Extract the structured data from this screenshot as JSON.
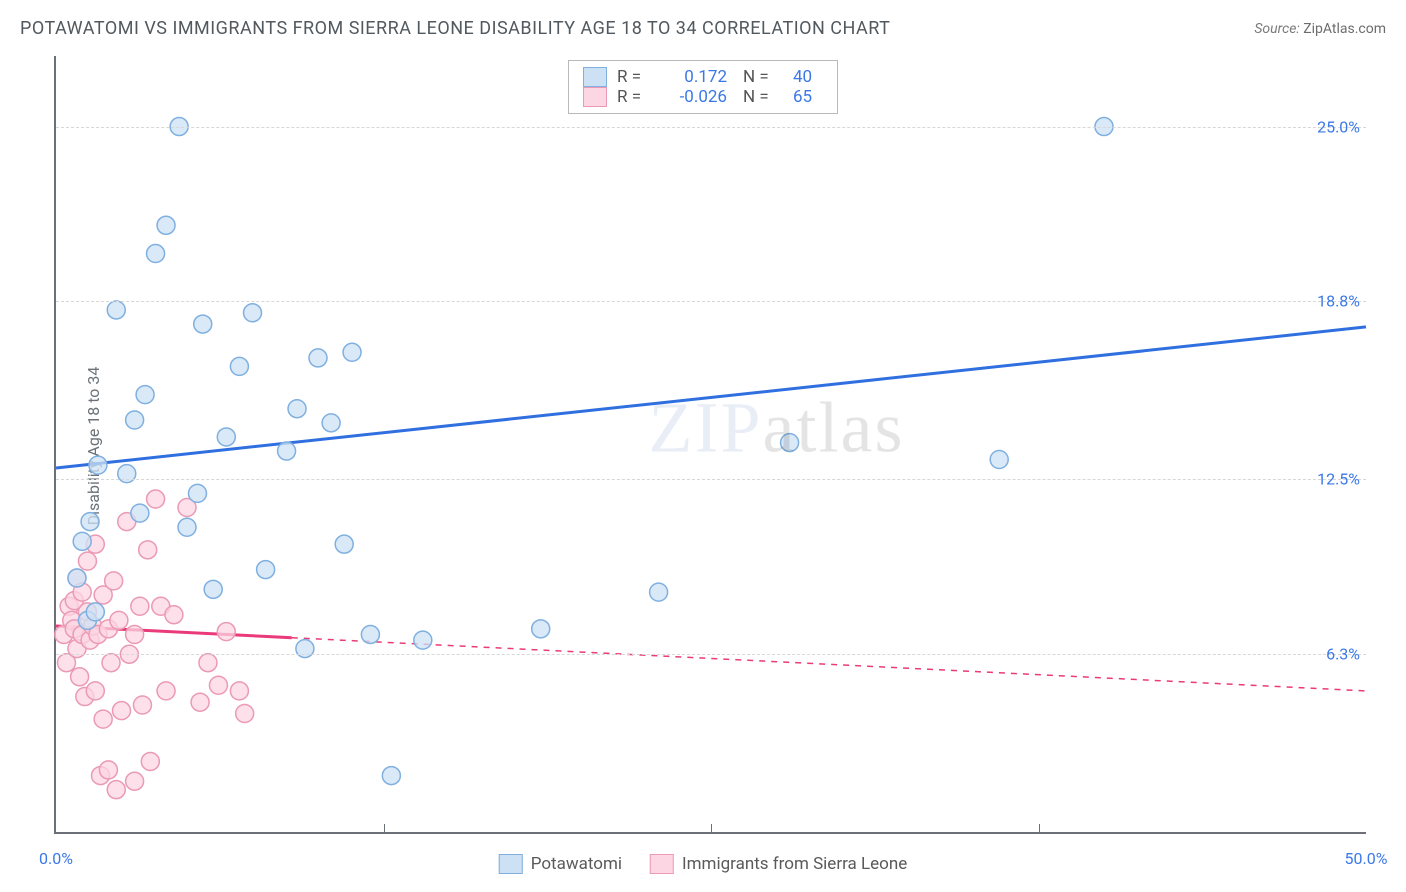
{
  "title": "POTAWATOMI VS IMMIGRANTS FROM SIERRA LEONE DISABILITY AGE 18 TO 34 CORRELATION CHART",
  "source_prefix": "Source: ",
  "source_site": "ZipAtlas.com",
  "ylabel": "Disability Age 18 to 34",
  "watermark_a": "ZIP",
  "watermark_b": "atlas",
  "chart": {
    "type": "scatter",
    "xlim": [
      0,
      50
    ],
    "ylim": [
      0,
      27.5
    ],
    "x_ticks_pct": [
      0,
      12.5,
      25,
      37.5,
      50
    ],
    "x_axis_labels": {
      "min": "0.0%",
      "max": "50.0%"
    },
    "y_gridlines": [
      {
        "val": 6.3,
        "label": "6.3%"
      },
      {
        "val": 12.5,
        "label": "12.5%"
      },
      {
        "val": 18.8,
        "label": "18.8%"
      },
      {
        "val": 25.0,
        "label": "25.0%"
      }
    ],
    "background_color": "#ffffff",
    "grid_color": "#d7d7d7",
    "axis_color": "#6b7177",
    "label_color_blue": "#3b78e7",
    "marker_radius": 9,
    "marker_stroke_width": 1.5,
    "trend_line_width": 3,
    "series": [
      {
        "key": "blue",
        "name": "Potawatomi",
        "R": "0.172",
        "N": "40",
        "fill": "#cde1f4",
        "stroke": "#7fb0e0",
        "trend_color": "#2f6fe0",
        "trend": {
          "x1": 0,
          "y1": 12.9,
          "x2": 50,
          "y2": 17.9,
          "solid_until_x": 50
        },
        "points": [
          [
            0.8,
            9.0
          ],
          [
            1.0,
            10.3
          ],
          [
            1.2,
            7.5
          ],
          [
            1.3,
            11.0
          ],
          [
            1.5,
            7.8
          ],
          [
            1.6,
            13.0
          ],
          [
            2.3,
            18.5
          ],
          [
            2.7,
            12.7
          ],
          [
            3.0,
            14.6
          ],
          [
            3.2,
            11.3
          ],
          [
            3.4,
            15.5
          ],
          [
            3.8,
            20.5
          ],
          [
            4.2,
            21.5
          ],
          [
            4.7,
            25.0
          ],
          [
            5.0,
            10.8
          ],
          [
            5.4,
            12.0
          ],
          [
            5.6,
            18.0
          ],
          [
            6.0,
            8.6
          ],
          [
            6.5,
            14.0
          ],
          [
            7.0,
            16.5
          ],
          [
            7.5,
            18.4
          ],
          [
            8.0,
            9.3
          ],
          [
            8.8,
            13.5
          ],
          [
            9.2,
            15.0
          ],
          [
            9.5,
            6.5
          ],
          [
            10.0,
            16.8
          ],
          [
            10.5,
            14.5
          ],
          [
            11.0,
            10.2
          ],
          [
            11.3,
            17.0
          ],
          [
            12.0,
            7.0
          ],
          [
            12.8,
            2.0
          ],
          [
            14.0,
            6.8
          ],
          [
            18.5,
            7.2
          ],
          [
            23.0,
            8.5
          ],
          [
            28.0,
            13.8
          ],
          [
            36.0,
            13.2
          ],
          [
            40.0,
            25.0
          ]
        ]
      },
      {
        "key": "pink",
        "name": "Immigrants from Sierra Leone",
        "R": "-0.026",
        "N": "65",
        "fill": "#fcd6e2",
        "stroke": "#ea9ab5",
        "trend_color": "#ea3a7a",
        "trend": {
          "x1": 0,
          "y1": 7.3,
          "x2": 50,
          "y2": 5.0,
          "solid_until_x": 9
        },
        "points": [
          [
            0.3,
            7.0
          ],
          [
            0.4,
            6.0
          ],
          [
            0.5,
            8.0
          ],
          [
            0.6,
            7.5
          ],
          [
            0.7,
            7.2
          ],
          [
            0.7,
            8.2
          ],
          [
            0.8,
            6.5
          ],
          [
            0.8,
            9.0
          ],
          [
            0.9,
            5.5
          ],
          [
            1.0,
            7.0
          ],
          [
            1.0,
            8.5
          ],
          [
            1.1,
            4.8
          ],
          [
            1.2,
            7.8
          ],
          [
            1.2,
            9.6
          ],
          [
            1.3,
            6.8
          ],
          [
            1.4,
            7.3
          ],
          [
            1.5,
            5.0
          ],
          [
            1.5,
            10.2
          ],
          [
            1.6,
            7.0
          ],
          [
            1.7,
            2.0
          ],
          [
            1.8,
            8.4
          ],
          [
            1.8,
            4.0
          ],
          [
            2.0,
            7.2
          ],
          [
            2.0,
            2.2
          ],
          [
            2.1,
            6.0
          ],
          [
            2.2,
            8.9
          ],
          [
            2.3,
            1.5
          ],
          [
            2.4,
            7.5
          ],
          [
            2.5,
            4.3
          ],
          [
            2.7,
            11.0
          ],
          [
            2.8,
            6.3
          ],
          [
            3.0,
            7.0
          ],
          [
            3.0,
            1.8
          ],
          [
            3.2,
            8.0
          ],
          [
            3.3,
            4.5
          ],
          [
            3.5,
            10.0
          ],
          [
            3.6,
            2.5
          ],
          [
            3.8,
            11.8
          ],
          [
            4.0,
            8.0
          ],
          [
            4.2,
            5.0
          ],
          [
            4.5,
            7.7
          ],
          [
            5.0,
            11.5
          ],
          [
            5.5,
            4.6
          ],
          [
            5.8,
            6.0
          ],
          [
            6.2,
            5.2
          ],
          [
            6.5,
            7.1
          ],
          [
            7.0,
            5.0
          ],
          [
            7.2,
            4.2
          ]
        ]
      }
    ]
  },
  "legend_bottom": [
    {
      "label": "Potawatomi",
      "fill": "#cde1f4",
      "stroke": "#7fb0e0"
    },
    {
      "label": "Immigrants from Sierra Leone",
      "fill": "#fcd6e2",
      "stroke": "#ea9ab5"
    }
  ]
}
